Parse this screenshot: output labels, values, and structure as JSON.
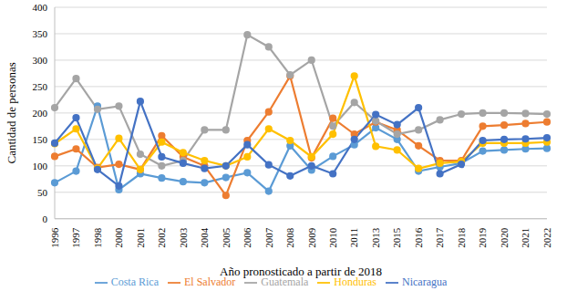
{
  "chart_data": {
    "type": "line",
    "x_label": "Año pronosticado a partir de 2018",
    "y_label": "Cantidad de personas",
    "categories": [
      "1996",
      "1997",
      "1998",
      "2000",
      "2001",
      "2002",
      "2003",
      "2004",
      "2005",
      "2006",
      "2007",
      "2008",
      "2009",
      "2010",
      "2011",
      "2013",
      "2015",
      "2016",
      "2017",
      "2018",
      "2019",
      "2020",
      "2021",
      "2022"
    ],
    "series": [
      {
        "name": "Costa Rica",
        "color": "#5B9BD5",
        "values": [
          68,
          90,
          213,
          55,
          85,
          77,
          70,
          68,
          78,
          87,
          52,
          138,
          92,
          118,
          140,
          172,
          150,
          90,
          98,
          105,
          128,
          130,
          132,
          133
        ]
      },
      {
        "name": "El Salvador",
        "color": "#ED7D31",
        "values": [
          118,
          132,
          97,
          103,
          93,
          157,
          117,
          100,
          44,
          148,
          202,
          270,
          115,
          190,
          160,
          183,
          168,
          138,
          110,
          110,
          175,
          177,
          180,
          183
        ]
      },
      {
        "name": "Guatemala",
        "color": "#A5A5A5",
        "values": [
          210,
          265,
          207,
          213,
          122,
          100,
          110,
          168,
          168,
          348,
          325,
          272,
          300,
          175,
          220,
          185,
          160,
          168,
          187,
          198,
          200,
          200,
          199,
          198
        ]
      },
      {
        "name": "Honduras",
        "color": "#FFC000",
        "values": [
          142,
          170,
          95,
          152,
          93,
          145,
          125,
          110,
          100,
          117,
          170,
          148,
          117,
          160,
          270,
          137,
          130,
          95,
          105,
          108,
          143,
          143,
          143,
          145
        ]
      },
      {
        "name": "Nicaragua",
        "color": "#4472C4",
        "values": [
          143,
          191,
          93,
          62,
          222,
          117,
          105,
          95,
          100,
          140,
          102,
          81,
          100,
          85,
          150,
          197,
          178,
          210,
          85,
          103,
          148,
          150,
          151,
          153
        ]
      }
    ],
    "ylim": [
      0,
      400
    ],
    "yticks": [
      0,
      50,
      100,
      150,
      200,
      250,
      300,
      350,
      400
    ],
    "grid": true,
    "legend": "bottom",
    "marker": "circle"
  }
}
